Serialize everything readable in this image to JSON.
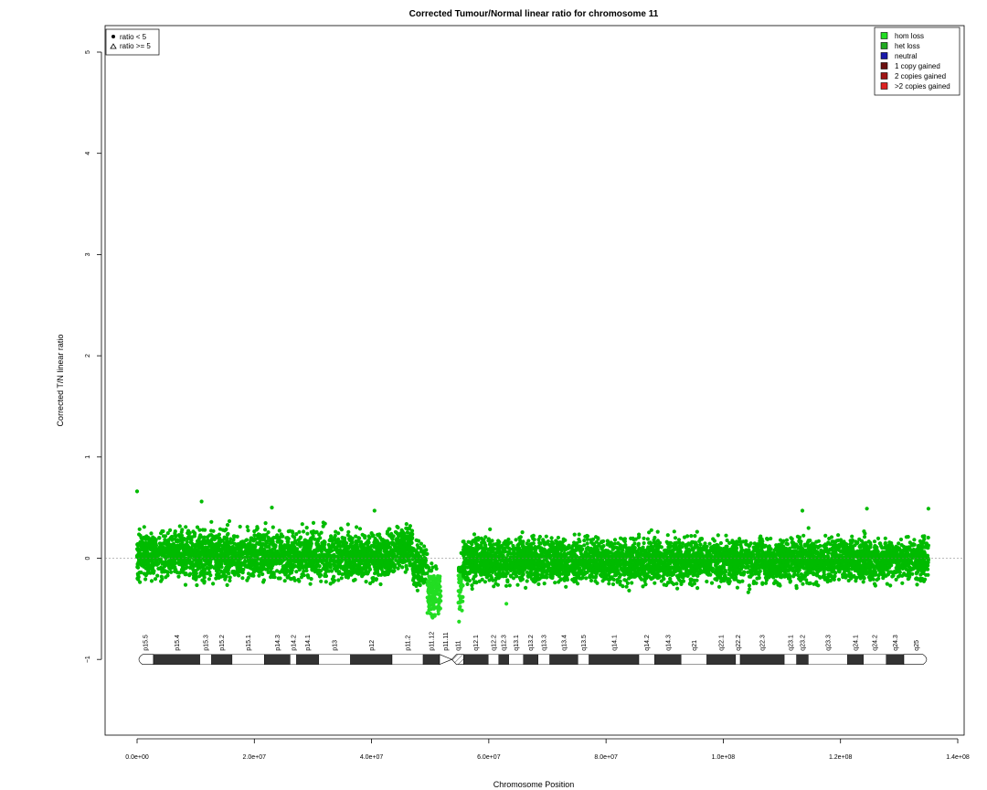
{
  "chart_data": {
    "type": "scatter",
    "title": "Corrected Tumour/Normal linear ratio for chromosome  11",
    "xlabel": "Chromosome Position",
    "ylabel": "Corrected T/N linear ratio",
    "xlim": [
      0,
      140000000
    ],
    "ylim": [
      -1.8,
      5.3
    ],
    "x_tick_values": [
      0,
      20000000,
      40000000,
      60000000,
      80000000,
      100000000,
      120000000,
      140000000
    ],
    "x_tick_labels": [
      "0.0e+00",
      "2.0e+07",
      "4.0e+07",
      "6.0e+07",
      "8.0e+07",
      "1.0e+08",
      "1.2e+08",
      "1.4e+08"
    ],
    "y_tick_values": [
      -1,
      0,
      1,
      2,
      3,
      4,
      5
    ],
    "y_tick_labels": [
      "−1",
      "0",
      "1",
      "2",
      "3",
      "4",
      "5"
    ],
    "reference_line_y": 0,
    "legend_shapes": [
      {
        "symbol": "filled-circle",
        "label": "ratio < 5"
      },
      {
        "symbol": "open-triangle",
        "label": "ratio >= 5"
      }
    ],
    "legend_shapes_position": "top-left",
    "legend_states": [
      {
        "label": "hom loss",
        "color": "#22dd22"
      },
      {
        "label": "het loss",
        "color": "#22aa22"
      },
      {
        "label": "neutral",
        "color": "#1a1aaa"
      },
      {
        "label": "1 copy gained",
        "color": "#6b1010"
      },
      {
        "label": "2 copies gained",
        "color": "#a01515"
      },
      {
        "label": ">2 copies gained",
        "color": "#dd2222"
      }
    ],
    "legend_states_position": "top-right",
    "point_colors": {
      "main": "#00bb00",
      "hom_loss": "#22dd22"
    },
    "series": [
      {
        "symbol": "filled-circle",
        "values_summary": "Dense scatter of ~ratio values, mostly between -0.3 and 0.4 around 0 across the chromosome; dip to about -0.55 near the centromere (~4.9e7-5.2e7); gap in coverage around 5.2e7-5.4e7.",
        "segments": [
          {
            "x_range": [
              0,
              44000000
            ],
            "center": 0.03,
            "spread": 0.14
          },
          {
            "x_range": [
              44000000,
              47000000
            ],
            "center": 0.12,
            "spread": 0.12
          },
          {
            "x_range": [
              47000000,
              49500000
            ],
            "center": -0.08,
            "spread": 0.13
          },
          {
            "x_range": [
              49500000,
              51800000
            ],
            "center": -0.33,
            "spread": 0.15
          },
          {
            "x_range": [
              54800000,
              55600000
            ],
            "center": -0.25,
            "spread": 0.17
          },
          {
            "x_range": [
              55600000,
              135000000
            ],
            "center": -0.02,
            "spread": 0.13
          }
        ],
        "highlight_points": [
          {
            "x": 0,
            "y": 0.66
          },
          {
            "x": 11000000,
            "y": 0.56
          },
          {
            "x": 23000000,
            "y": 0.5
          },
          {
            "x": 40500000,
            "y": 0.47
          },
          {
            "x": 113500000,
            "y": 0.47
          },
          {
            "x": 124500000,
            "y": 0.49
          },
          {
            "x": 135000000,
            "y": 0.49
          },
          {
            "x": 50800000,
            "y": -0.56
          },
          {
            "x": 51400000,
            "y": -0.52
          },
          {
            "x": 49800000,
            "y": -0.48
          },
          {
            "x": 55000000,
            "y": -0.5
          },
          {
            "x": 63000000,
            "y": -0.45
          }
        ]
      }
    ],
    "ideogram": {
      "y": -1,
      "bands": [
        {
          "name": "p15.5",
          "start": 0,
          "end": 2800000,
          "stain": "gneg"
        },
        {
          "name": "p15.4",
          "start": 2800000,
          "end": 10700000,
          "stain": "gpos"
        },
        {
          "name": "p15.3",
          "start": 10700000,
          "end": 12700000,
          "stain": "gneg"
        },
        {
          "name": "p15.2",
          "start": 12700000,
          "end": 16200000,
          "stain": "gpos"
        },
        {
          "name": "p15.1",
          "start": 16200000,
          "end": 21700000,
          "stain": "gneg"
        },
        {
          "name": "p14.3",
          "start": 21700000,
          "end": 26100000,
          "stain": "gpos"
        },
        {
          "name": "p14.2",
          "start": 26100000,
          "end": 27200000,
          "stain": "gneg"
        },
        {
          "name": "p14.1",
          "start": 27200000,
          "end": 31000000,
          "stain": "gpos"
        },
        {
          "name": "p13",
          "start": 31000000,
          "end": 36400000,
          "stain": "gneg"
        },
        {
          "name": "p12",
          "start": 36400000,
          "end": 43500000,
          "stain": "gpos"
        },
        {
          "name": "p11.2",
          "start": 43500000,
          "end": 48800000,
          "stain": "gneg"
        },
        {
          "name": "p11.12",
          "start": 48800000,
          "end": 51600000,
          "stain": "gpos"
        },
        {
          "name": "p11.11",
          "start": 51600000,
          "end": 53700000,
          "stain": "acen"
        },
        {
          "name": "q11",
          "start": 53700000,
          "end": 55700000,
          "stain": "gvar"
        },
        {
          "name": "q12.1",
          "start": 55700000,
          "end": 59900000,
          "stain": "gpos"
        },
        {
          "name": "q12.2",
          "start": 59900000,
          "end": 61700000,
          "stain": "gneg"
        },
        {
          "name": "q12.3",
          "start": 61700000,
          "end": 63400000,
          "stain": "gpos"
        },
        {
          "name": "q13.1",
          "start": 63400000,
          "end": 65900000,
          "stain": "gneg"
        },
        {
          "name": "q13.2",
          "start": 65900000,
          "end": 68400000,
          "stain": "gpos"
        },
        {
          "name": "q13.3",
          "start": 68400000,
          "end": 70400000,
          "stain": "gneg"
        },
        {
          "name": "q13.4",
          "start": 70400000,
          "end": 75200000,
          "stain": "gpos"
        },
        {
          "name": "q13.5",
          "start": 75200000,
          "end": 77100000,
          "stain": "gneg"
        },
        {
          "name": "q14.1",
          "start": 77100000,
          "end": 85600000,
          "stain": "gpos"
        },
        {
          "name": "q14.2",
          "start": 85600000,
          "end": 88300000,
          "stain": "gneg"
        },
        {
          "name": "q14.3",
          "start": 88300000,
          "end": 92800000,
          "stain": "gpos"
        },
        {
          "name": "q21",
          "start": 92800000,
          "end": 97200000,
          "stain": "gneg"
        },
        {
          "name": "q22.1",
          "start": 97200000,
          "end": 102100000,
          "stain": "gpos"
        },
        {
          "name": "q22.2",
          "start": 102100000,
          "end": 102900000,
          "stain": "gneg"
        },
        {
          "name": "q22.3",
          "start": 102900000,
          "end": 110400000,
          "stain": "gpos"
        },
        {
          "name": "q23.1",
          "start": 110400000,
          "end": 112500000,
          "stain": "gneg"
        },
        {
          "name": "q23.2",
          "start": 112500000,
          "end": 114500000,
          "stain": "gpos"
        },
        {
          "name": "q23.3",
          "start": 114500000,
          "end": 121200000,
          "stain": "gneg"
        },
        {
          "name": "q24.1",
          "start": 121200000,
          "end": 123900000,
          "stain": "gpos"
        },
        {
          "name": "q24.2",
          "start": 123900000,
          "end": 127800000,
          "stain": "gneg"
        },
        {
          "name": "q24.3",
          "start": 127800000,
          "end": 130800000,
          "stain": "gpos"
        },
        {
          "name": "q25",
          "start": 130800000,
          "end": 135000000,
          "stain": "gneg"
        }
      ]
    }
  }
}
